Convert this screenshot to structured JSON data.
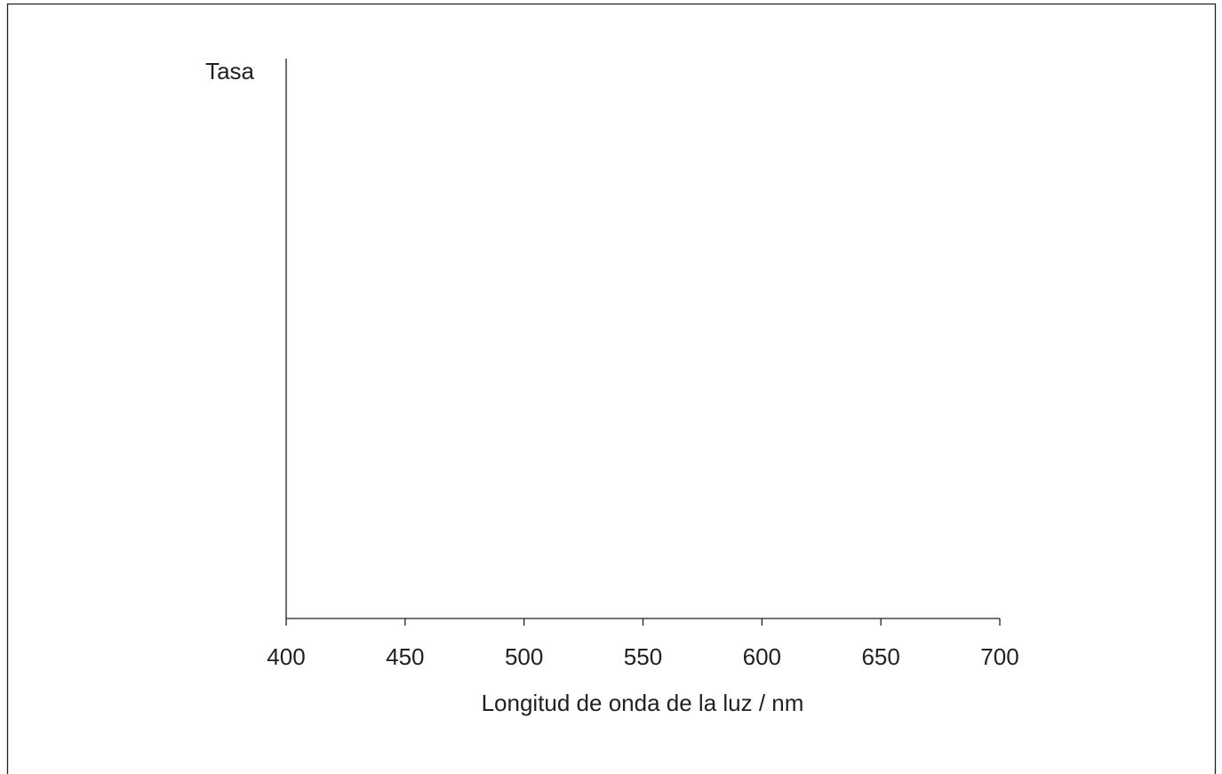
{
  "chart_data": {
    "type": "line",
    "xlabel": "Longitud de onda de la luz / nm",
    "ylabel": "Tasa",
    "xlim": [
      400,
      700
    ],
    "xticks": [
      400,
      450,
      500,
      550,
      600,
      650,
      700
    ]
  }
}
